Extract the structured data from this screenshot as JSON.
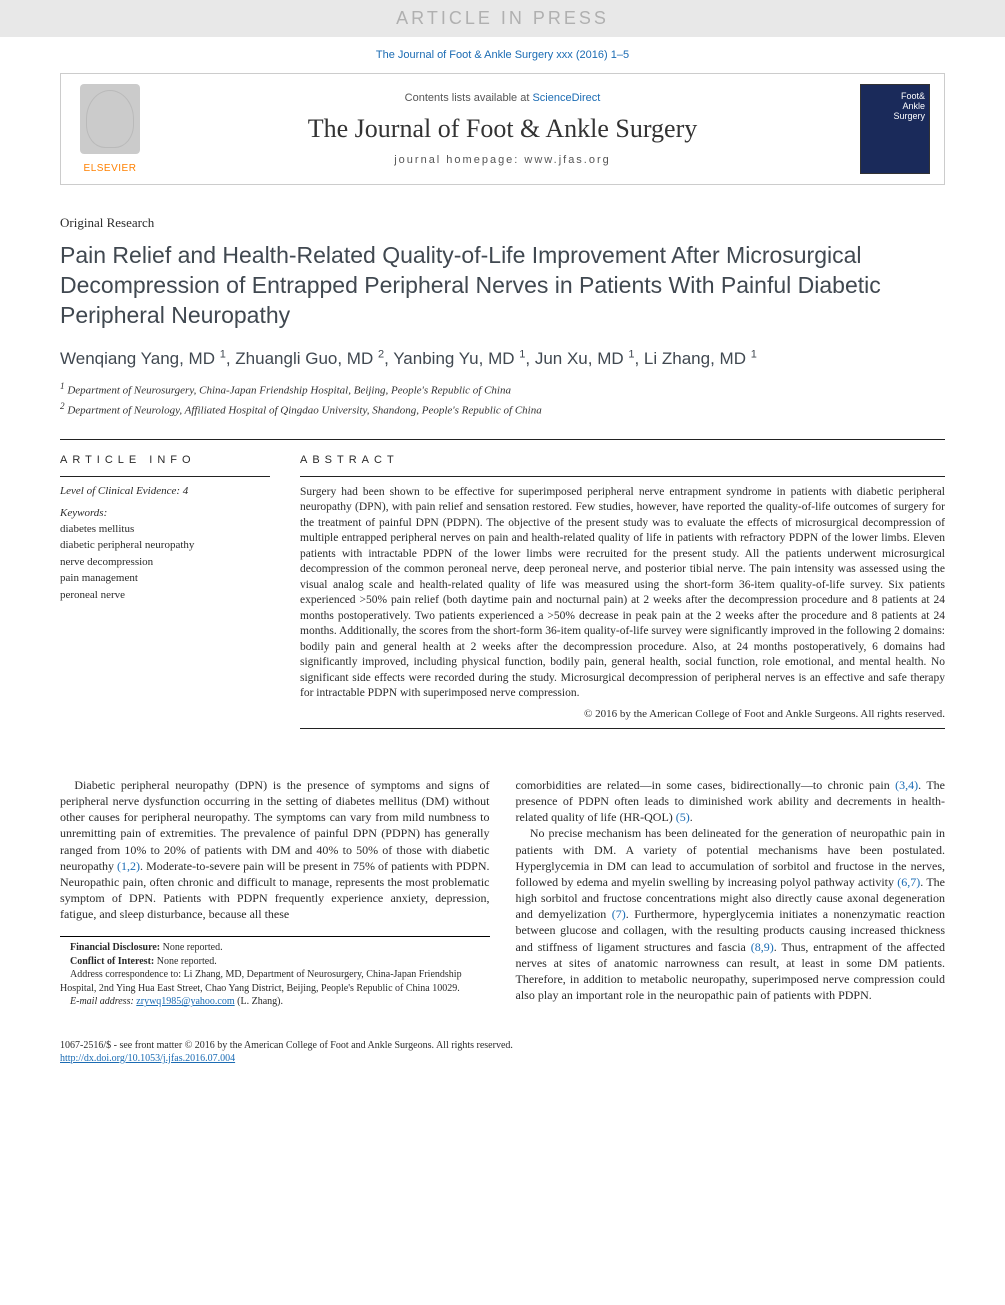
{
  "banner": "ARTICLE IN PRESS",
  "citation": "The Journal of Foot & Ankle Surgery xxx (2016) 1–5",
  "masthead": {
    "contents_prefix": "Contents lists available at ",
    "contents_link": "ScienceDirect",
    "journal_title": "The Journal of Foot & Ankle Surgery",
    "homepage_label": "journal homepage: www.jfas.org",
    "publisher": "ELSEVIER"
  },
  "article_type": "Original Research",
  "title": "Pain Relief and Health-Related Quality-of-Life Improvement After Microsurgical Decompression of Entrapped Peripheral Nerves in Patients With Painful Diabetic Peripheral Neuropathy",
  "authors_html": "Wenqiang Yang, MD <sup>1</sup>, Zhuangli Guo, MD <sup>2</sup>, Yanbing Yu, MD <sup>1</sup>, Jun Xu, MD <sup>1</sup>, Li Zhang, MD <sup>1</sup>",
  "affiliations": [
    "1 Department of Neurosurgery, China-Japan Friendship Hospital, Beijing, People's Republic of China",
    "2 Department of Neurology, Affiliated Hospital of Qingdao University, Shandong, People's Republic of China"
  ],
  "info": {
    "label": "ARTICLE INFO",
    "evidence": "Level of Clinical Evidence: 4",
    "keywords_label": "Keywords:",
    "keywords": [
      "diabetes mellitus",
      "diabetic peripheral neuropathy",
      "nerve decompression",
      "pain management",
      "peroneal nerve"
    ]
  },
  "abstract": {
    "label": "ABSTRACT",
    "text": "Surgery had been shown to be effective for superimposed peripheral nerve entrapment syndrome in patients with diabetic peripheral neuropathy (DPN), with pain relief and sensation restored. Few studies, however, have reported the quality-of-life outcomes of surgery for the treatment of painful DPN (PDPN). The objective of the present study was to evaluate the effects of microsurgical decompression of multiple entrapped peripheral nerves on pain and health-related quality of life in patients with refractory PDPN of the lower limbs. Eleven patients with intractable PDPN of the lower limbs were recruited for the present study. All the patients underwent microsurgical decompression of the common peroneal nerve, deep peroneal nerve, and posterior tibial nerve. The pain intensity was assessed using the visual analog scale and health-related quality of life was measured using the short-form 36-item quality-of-life survey. Six patients experienced >50% pain relief (both daytime pain and nocturnal pain) at 2 weeks after the decompression procedure and 8 patients at 24 months postoperatively. Two patients experienced a >50% decrease in peak pain at the 2 weeks after the procedure and 8 patients at 24 months. Additionally, the scores from the short-form 36-item quality-of-life survey were significantly improved in the following 2 domains: bodily pain and general health at 2 weeks after the decompression procedure. Also, at 24 months postoperatively, 6 domains had significantly improved, including physical function, bodily pain, general health, social function, role emotional, and mental health. No significant side effects were recorded during the study. Microsurgical decompression of peripheral nerves is an effective and safe therapy for intractable PDPN with superimposed nerve compression.",
    "copyright": "© 2016 by the American College of Foot and Ankle Surgeons. All rights reserved."
  },
  "body": {
    "col1_p1a": "Diabetic peripheral neuropathy (DPN) is the presence of symptoms and signs of peripheral nerve dysfunction occurring in the setting of diabetes mellitus (DM) without other causes for peripheral neuropathy. The symptoms can vary from mild numbness to unremitting pain of extremities. The prevalence of painful DPN (PDPN) has generally ranged from 10% to 20% of patients with DM and 40% to 50% of those with diabetic neuropathy ",
    "ref12": "(1,2)",
    "col1_p1b": ". Moderate-to-severe pain will be present in 75% of patients with PDPN. Neuropathic pain, often chronic and difficult to manage, represents the most problematic symptom of DPN. Patients with PDPN frequently experience anxiety, depression, fatigue, and sleep disturbance, because all these",
    "col2_p1a": "comorbidities are related—in some cases, bidirectionally—to chronic pain ",
    "ref34": "(3,4)",
    "col2_p1b": ". The presence of PDPN often leads to diminished work ability and decrements in health-related quality of life (HR-QOL) ",
    "ref5": "(5)",
    "col2_p1c": ".",
    "col2_p2a": "No precise mechanism has been delineated for the generation of neuropathic pain in patients with DM. A variety of potential mechanisms have been postulated. Hyperglycemia in DM can lead to accumulation of sorbitol and fructose in the nerves, followed by edema and myelin swelling by increasing polyol pathway activity ",
    "ref67": "(6,7)",
    "col2_p2b": ". The high sorbitol and fructose concentrations might also directly cause axonal degeneration and demyelization ",
    "ref7": "(7)",
    "col2_p2c": ". Furthermore, hyperglycemia initiates a nonenzymatic reaction between glucose and collagen, with the resulting products causing increased thickness and stiffness of ligament structures and fascia ",
    "ref89": "(8,9)",
    "col2_p2d": ". Thus, entrapment of the affected nerves at sites of anatomic narrowness can result, at least in some DM patients. Therefore, in addition to metabolic neuropathy, superimposed nerve compression could also play an important role in the neuropathic pain of patients with PDPN."
  },
  "footnotes": {
    "fd_label": "Financial Disclosure:",
    "fd_text": " None reported.",
    "coi_label": "Conflict of Interest:",
    "coi_text": " None reported.",
    "corr": "Address correspondence to: Li Zhang, MD, Department of Neurosurgery, China-Japan Friendship Hospital, 2nd Ying Hua East Street, Chao Yang District, Beijing, People's Republic of China 10029.",
    "email_label": "E-mail address: ",
    "email": "zrywq1985@yahoo.com",
    "email_suffix": " (L. Zhang)."
  },
  "footer": {
    "line1": "1067-2516/$ - see front matter © 2016 by the American College of Foot and Ankle Surgeons. All rights reserved.",
    "doi": "http://dx.doi.org/10.1053/j.jfas.2016.07.004"
  }
}
